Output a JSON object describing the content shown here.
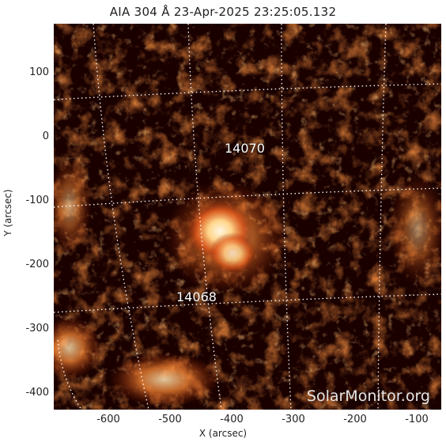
{
  "title": "AIA 304 Å 23-Apr-2025 23:25:05.132",
  "axes": {
    "xlabel": "X (arcsec)",
    "ylabel": "Y (arcsec)",
    "xticks": [
      "-600",
      "-500",
      "-400",
      "-300",
      "-200",
      "-100"
    ],
    "yticks": [
      "100",
      "0",
      "-100",
      "-200",
      "-300",
      "-400"
    ]
  },
  "regions": [
    "14070",
    "14068"
  ],
  "watermark": "SolarMonitor.org",
  "colors": {
    "background": "#1a0100",
    "emission": "#c83a0a",
    "bright": "#ffe0b0"
  }
}
